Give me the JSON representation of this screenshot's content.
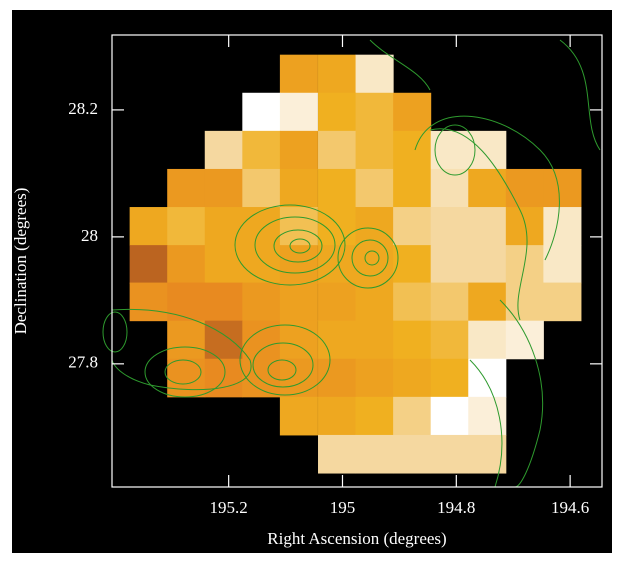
{
  "chart_data": {
    "type": "heatmap",
    "xlabel": "Right Ascension (degrees)",
    "ylabel": "Declination (degrees)",
    "xlim": [
      195.405,
      194.544
    ],
    "ylim": [
      27.606,
      28.318
    ],
    "xticks": [
      195.2,
      195,
      194.8,
      194.6
    ],
    "yticks": [
      27.8,
      28,
      28.2
    ],
    "x": [
      195.341,
      195.275,
      195.209,
      195.143,
      195.077,
      195.01,
      194.944,
      194.878,
      194.812,
      194.746,
      194.68,
      194.614
    ],
    "y": [
      28.257,
      28.197,
      28.137,
      28.077,
      28.017,
      27.957,
      27.898,
      27.838,
      27.778,
      27.718,
      27.658
    ],
    "colorscale": [
      "#b05a20",
      "#e88a20",
      "#f0b020",
      "#f5d8a0",
      "#ffffff"
    ],
    "z": [
      [
        null,
        null,
        null,
        null,
        0.4,
        0.45,
        0.85,
        null,
        null,
        null,
        null,
        null
      ],
      [
        null,
        null,
        null,
        1.0,
        0.9,
        0.5,
        0.55,
        0.4,
        null,
        null,
        null,
        null
      ],
      [
        null,
        null,
        0.75,
        0.55,
        0.4,
        0.65,
        0.55,
        0.5,
        0.85,
        0.85,
        null,
        null
      ],
      [
        null,
        0.35,
        0.35,
        0.65,
        0.45,
        0.5,
        0.65,
        0.5,
        0.8,
        0.45,
        0.35,
        0.35
      ],
      [
        0.45,
        0.55,
        0.45,
        0.45,
        0.6,
        0.5,
        0.45,
        0.7,
        0.75,
        0.75,
        0.45,
        0.85
      ],
      [
        0.05,
        0.35,
        0.45,
        0.45,
        0.4,
        0.45,
        0.45,
        0.5,
        0.75,
        0.75,
        0.7,
        0.85
      ],
      [
        0.3,
        0.25,
        0.25,
        0.35,
        0.4,
        0.4,
        0.45,
        0.6,
        0.65,
        0.45,
        0.7,
        0.7
      ],
      [
        null,
        0.35,
        0.1,
        0.3,
        0.4,
        0.45,
        0.45,
        0.5,
        0.55,
        0.85,
        0.9,
        null
      ],
      [
        null,
        0.3,
        0.25,
        0.3,
        0.35,
        0.35,
        0.4,
        0.45,
        0.5,
        1.0,
        null,
        null
      ],
      [
        null,
        null,
        null,
        null,
        0.45,
        0.45,
        0.5,
        0.7,
        1.0,
        0.9,
        null,
        null
      ],
      [
        null,
        null,
        null,
        null,
        null,
        0.75,
        0.75,
        0.75,
        0.75,
        0.75,
        null,
        null
      ]
    ]
  }
}
